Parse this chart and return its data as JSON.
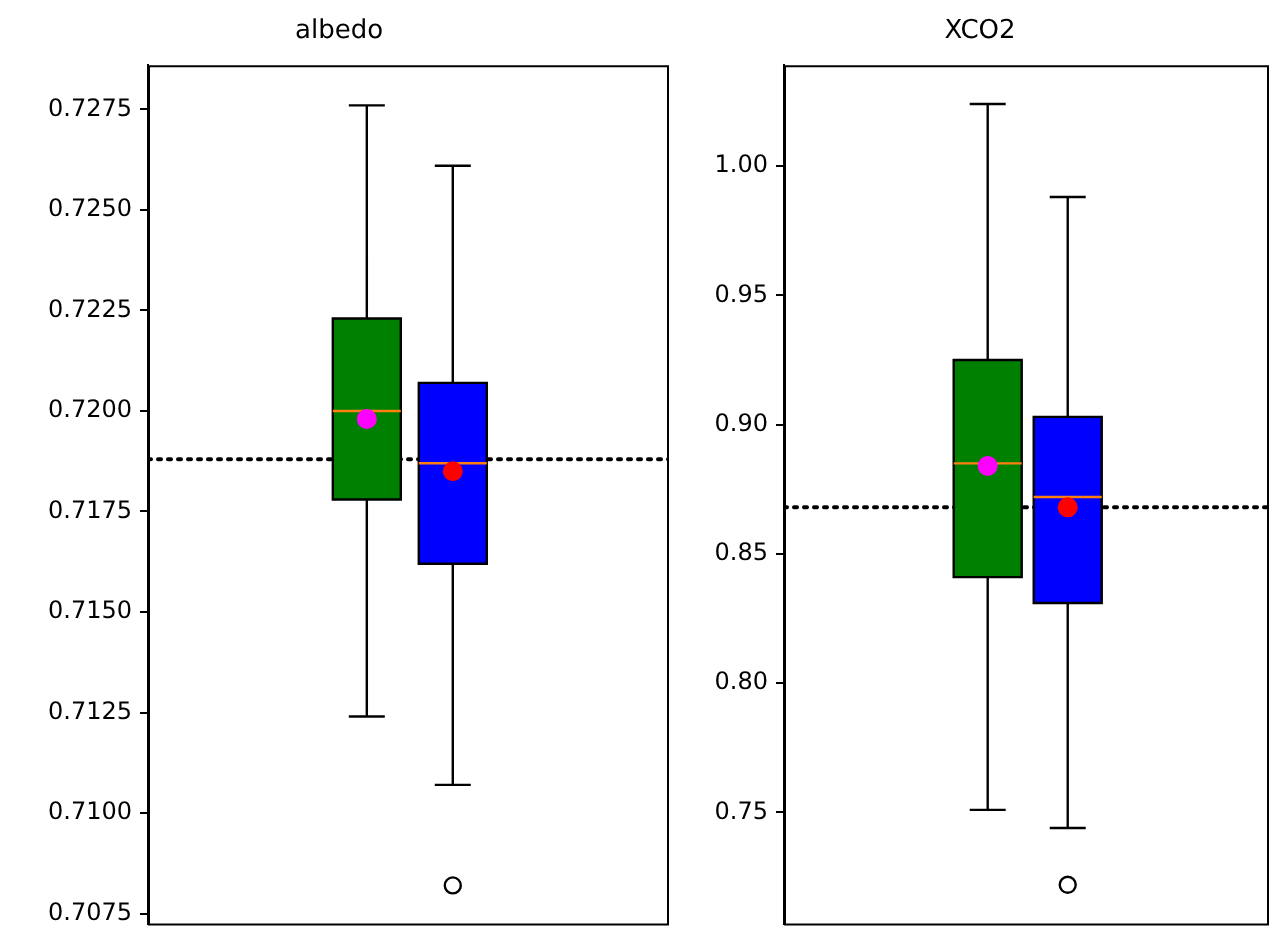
{
  "chart_data": [
    {
      "type": "box",
      "title": "albedo",
      "categories": [
        null,
        null
      ],
      "colors": [
        "#008000",
        "#0000ff"
      ],
      "boxes": [
        {
          "low": 0.7124,
          "q1": 0.7178,
          "median": 0.72,
          "q3": 0.7223,
          "high": 0.7276
        },
        {
          "low": 0.7107,
          "q1": 0.7162,
          "median": 0.7187,
          "q3": 0.7207,
          "high": 0.7261,
          "outliers": [
            0.7082
          ]
        }
      ],
      "series": [
        {
          "type": "scatter",
          "marker": "circle",
          "colors": [
            "#ff00ff",
            "#ff0000"
          ],
          "values": [
            0.7198,
            0.7185
          ]
        }
      ],
      "ref_lines": [
        {
          "axis": "y",
          "value": 0.7188,
          "color": "#000000",
          "line_style": "dotted"
        }
      ],
      "ylim": [
        0.70725,
        0.7286
      ],
      "yticks": [
        0.7075,
        {
          "value": 0.71,
          "label": "0.7100"
        },
        0.7125,
        {
          "value": 0.715,
          "label": "0.7150"
        },
        0.7175,
        {
          "value": 0.72,
          "label": "0.7200"
        },
        0.7225,
        {
          "value": 0.725,
          "label": "0.7250"
        },
        0.7275
      ],
      "tick_labels": "y",
      "grid": false,
      "legend": false
    },
    {
      "type": "box",
      "title": "XCO2",
      "categories": [
        null,
        null
      ],
      "colors": [
        "#008000",
        "#0000ff"
      ],
      "boxes": [
        {
          "low": 0.751,
          "q1": 0.841,
          "median": 0.885,
          "q3": 0.925,
          "high": 1.024
        },
        {
          "low": 0.744,
          "q1": 0.831,
          "median": 0.872,
          "q3": 0.903,
          "high": 0.988,
          "outliers": [
            0.722
          ]
        }
      ],
      "series": [
        {
          "type": "scatter",
          "marker": "circle",
          "colors": [
            "#ff00ff",
            "#ff0000"
          ],
          "values": [
            0.884,
            0.868
          ]
        }
      ],
      "ref_lines": [
        {
          "axis": "y",
          "value": 0.868,
          "color": "#000000",
          "line_style": "dotted"
        }
      ],
      "ylim": [
        0.707,
        1.039
      ],
      "yticks": [
        0.75,
        {
          "value": 0.8,
          "label": "0.80"
        },
        0.85,
        {
          "value": 0.9,
          "label": "0.90"
        },
        0.95,
        {
          "value": 1,
          "label": "1.00"
        }
      ],
      "tick_labels": "y",
      "grid": false,
      "legend": false
    }
  ]
}
